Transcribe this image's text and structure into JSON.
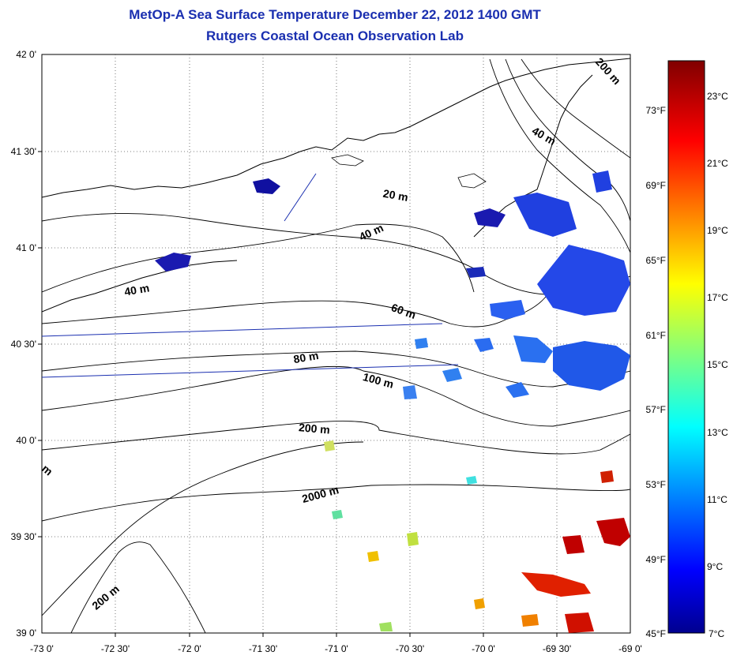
{
  "title": {
    "line1": "MetOp-A Sea Surface Temperature December 22, 2012 1400 GMT",
    "line2": "Rutgers Coastal Ocean Observation Lab"
  },
  "map": {
    "lon_range": [
      -73.0,
      -69.0
    ],
    "lat_range": [
      39.0,
      42.0
    ],
    "lon_ticks": [
      "-73 0'",
      "-72 30'",
      "-72 0'",
      "-71 30'",
      "-71 0'",
      "-70 30'",
      "-70 0'",
      "-69 30'",
      "-69 0'"
    ],
    "lat_ticks": [
      "42 0'",
      "41 30'",
      "41 0'",
      "40 30'",
      "40 0'",
      "39 30'",
      "39 0'"
    ],
    "isobath_labels": [
      {
        "text": "200 m",
        "lon": -69.17,
        "lat": 41.9,
        "angle": 48
      },
      {
        "text": "40 m",
        "lon": -69.6,
        "lat": 41.56,
        "angle": 30
      },
      {
        "text": "20 m",
        "lon": -70.6,
        "lat": 41.25,
        "angle": 10
      },
      {
        "text": "40 m",
        "lon": -70.75,
        "lat": 41.06,
        "angle": -25
      },
      {
        "text": "40 m",
        "lon": -72.35,
        "lat": 40.76,
        "angle": -10
      },
      {
        "text": "60 m",
        "lon": -70.55,
        "lat": 40.65,
        "angle": 20
      },
      {
        "text": "80 m",
        "lon": -71.2,
        "lat": 40.41,
        "angle": -10
      },
      {
        "text": "100 m",
        "lon": -70.72,
        "lat": 40.29,
        "angle": 15
      },
      {
        "text": "200 m",
        "lon": -71.15,
        "lat": 40.04,
        "angle": 5
      },
      {
        "text": "2000 m",
        "lon": -71.1,
        "lat": 39.7,
        "angle": -15
      },
      {
        "text": "200 m",
        "lon": -72.55,
        "lat": 39.17,
        "angle": -40
      },
      {
        "text": "m",
        "lon": -72.98,
        "lat": 39.83,
        "angle": 40
      }
    ]
  },
  "colorbar": {
    "celsius": [
      "23°C",
      "21°C",
      "19°C",
      "17°C",
      "15°C",
      "13°C",
      "11°C",
      "9°C",
      "7°C"
    ],
    "fahrenheit": [
      "73°F",
      "69°F",
      "65°F",
      "61°F",
      "57°F",
      "53°F",
      "49°F",
      "45°F"
    ],
    "colors": {
      "cold": "#00008f",
      "blue": "#0040ff",
      "cyan": "#00ffff",
      "yellow": "#ffff00",
      "orange": "#ff8000",
      "red": "#e00000",
      "warm": "#800000"
    }
  }
}
